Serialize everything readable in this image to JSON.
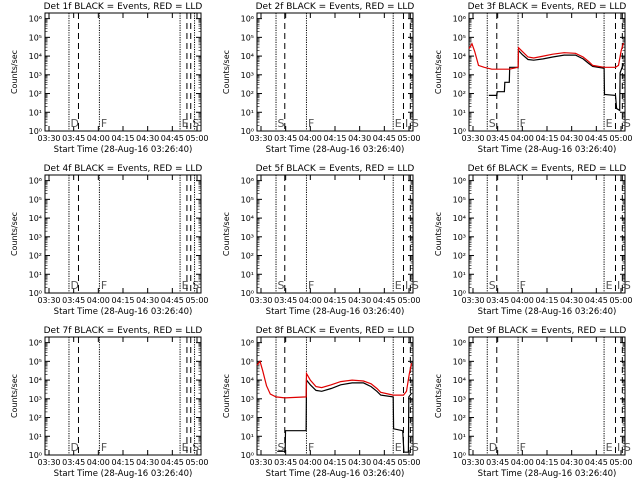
{
  "colors": {
    "events": "#000000",
    "lld": "#e00000",
    "axis": "#000000",
    "background": "#ffffff"
  },
  "chart_data": [
    {
      "type": "line",
      "title": "Det 1f BLACK = Events, RED = LLD",
      "xlabel": "Start Time (28-Aug-16 03:26:40)",
      "ylabel": "Counts/sec",
      "xticks": [
        "03:30",
        "03:45",
        "04:00",
        "04:15",
        "04:30",
        "04:45",
        "05:00"
      ],
      "yticks": [
        "10⁰",
        "10¹",
        "10²",
        "10³",
        "10⁴",
        "10⁵",
        "10⁶"
      ],
      "ylog": true,
      "xlim_min": [
        0,
        41
      ],
      "ylim_log10": [
        0,
        6.3
      ],
      "vlines": [
        {
          "t": 6.3,
          "style": "dotted",
          "label": "D"
        },
        {
          "t": 8.8,
          "style": "dashed",
          "label": ""
        },
        {
          "t": 14.3,
          "style": "dotted",
          "label": "F"
        },
        {
          "t": 35.5,
          "style": "dotted",
          "label": "E"
        },
        {
          "t": 37.3,
          "style": "dashed",
          "label": ""
        },
        {
          "t": 38.3,
          "style": "dashed",
          "label": "S"
        },
        {
          "t": 39.3,
          "style": "dotted",
          "label": ""
        }
      ],
      "series": []
    },
    {
      "type": "line",
      "title": "Det 2f BLACK = Events, RED = LLD",
      "xlabel": "Start Time (28-Aug-16 03:26:40)",
      "ylabel": "Counts/sec",
      "xticks": [
        "03:30",
        "03:45",
        "04:00",
        "04:15",
        "04:30",
        "04:45",
        "05:00"
      ],
      "yticks": [
        "10⁰",
        "10¹",
        "10²",
        "10³",
        "10⁴",
        "10⁵",
        "10⁶"
      ],
      "ylog": true,
      "xlim_min": [
        0,
        41
      ],
      "ylim_log10": [
        0,
        6.3
      ],
      "vlines": [
        {
          "t": 5.0,
          "style": "dotted",
          "label": "S"
        },
        {
          "t": 7.3,
          "style": "dashed",
          "label": ""
        },
        {
          "t": 13.0,
          "style": "dotted",
          "label": "F"
        },
        {
          "t": 35.8,
          "style": "dotted",
          "label": "E"
        },
        {
          "t": 38.5,
          "style": "dashed",
          "label": "I"
        },
        {
          "t": 40.3,
          "style": "dashed",
          "label": "S"
        }
      ],
      "series": []
    },
    {
      "type": "line",
      "title": "Det 3f BLACK = Events, RED = LLD",
      "xlabel": "Start Time (28-Aug-16 03:26:40)",
      "ylabel": "Counts/sec",
      "xticks": [
        "03:30",
        "03:45",
        "04:00",
        "04:15",
        "04:30",
        "04:45",
        "05:00"
      ],
      "yticks": [
        "10⁰",
        "10¹",
        "10²",
        "10³",
        "10⁴",
        "10⁵",
        "10⁶"
      ],
      "ylog": true,
      "xlim_min": [
        0,
        41
      ],
      "ylim_log10": [
        0,
        6.3
      ],
      "vlines": [
        {
          "t": 4.8,
          "style": "dotted",
          "label": "S"
        },
        {
          "t": 7.3,
          "style": "dashed",
          "label": ""
        },
        {
          "t": 12.9,
          "style": "dotted",
          "label": "F"
        },
        {
          "t": 35.5,
          "style": "dotted",
          "label": "E"
        },
        {
          "t": 38.5,
          "style": "dashed",
          "label": ""
        },
        {
          "t": 40.3,
          "style": "dashed",
          "label": "S"
        }
      ],
      "series": [
        {
          "name": "Events",
          "color": "#000000",
          "points": [
            [
              5.2,
              1.9
            ],
            [
              7.3,
              1.9
            ],
            [
              7.4,
              2.1
            ],
            [
              9.3,
              2.1
            ],
            [
              9.4,
              2.6
            ],
            [
              10.6,
              2.6
            ],
            [
              10.7,
              3.4
            ],
            [
              12.9,
              3.4
            ],
            [
              13.0,
              4.3
            ],
            [
              14.0,
              4.08
            ],
            [
              15.5,
              3.82
            ],
            [
              17.0,
              3.78
            ],
            [
              19.5,
              3.85
            ],
            [
              22.0,
              3.95
            ],
            [
              25.0,
              4.05
            ],
            [
              28.0,
              4.05
            ],
            [
              30.0,
              3.85
            ],
            [
              31.5,
              3.6
            ],
            [
              32.5,
              3.45
            ],
            [
              35.5,
              3.35
            ],
            [
              35.6,
              1.95
            ],
            [
              38.5,
              1.9
            ],
            [
              38.8,
              1.2
            ],
            [
              39.6,
              1.1
            ],
            [
              39.7,
              3.1
            ],
            [
              40.6,
              3.6
            ]
          ]
        },
        {
          "name": "LLD",
          "color": "#e00000",
          "points": [
            [
              0.0,
              4.4
            ],
            [
              0.8,
              4.65
            ],
            [
              1.5,
              4.25
            ],
            [
              2.5,
              3.5
            ],
            [
              4.0,
              3.4
            ],
            [
              6.0,
              3.3
            ],
            [
              9.0,
              3.3
            ],
            [
              10.6,
              3.3
            ],
            [
              12.9,
              3.4
            ],
            [
              13.0,
              4.45
            ],
            [
              14.0,
              4.25
            ],
            [
              15.5,
              3.95
            ],
            [
              17.0,
              3.9
            ],
            [
              19.5,
              4.0
            ],
            [
              22.0,
              4.1
            ],
            [
              25.0,
              4.18
            ],
            [
              28.0,
              4.15
            ],
            [
              30.0,
              3.95
            ],
            [
              31.5,
              3.7
            ],
            [
              32.5,
              3.5
            ],
            [
              35.5,
              3.4
            ],
            [
              38.5,
              3.4
            ],
            [
              39.3,
              3.5
            ],
            [
              40.0,
              4.3
            ],
            [
              40.6,
              4.7
            ]
          ]
        }
      ]
    },
    {
      "type": "line",
      "title": "Det 4f BLACK = Events, RED = LLD",
      "xlabel": "Start Time (28-Aug-16 03:26:40)",
      "ylabel": "Counts/sec",
      "xticks": [
        "03:30",
        "03:45",
        "04:00",
        "04:15",
        "04:30",
        "04:45",
        "05:00"
      ],
      "yticks": [
        "10⁰",
        "10¹",
        "10²",
        "10³",
        "10⁴",
        "10⁵",
        "10⁶"
      ],
      "ylog": true,
      "xlim_min": [
        0,
        41
      ],
      "ylim_log10": [
        0,
        6.3
      ],
      "vlines": [
        {
          "t": 6.3,
          "style": "dotted",
          "label": "D"
        },
        {
          "t": 8.8,
          "style": "dashed",
          "label": ""
        },
        {
          "t": 14.3,
          "style": "dotted",
          "label": "F"
        },
        {
          "t": 35.5,
          "style": "dotted",
          "label": "E"
        },
        {
          "t": 37.3,
          "style": "dashed",
          "label": ""
        },
        {
          "t": 38.3,
          "style": "dashed",
          "label": "S"
        },
        {
          "t": 39.3,
          "style": "dotted",
          "label": ""
        }
      ],
      "series": []
    },
    {
      "type": "line",
      "title": "Det 5f BLACK = Events, RED = LLD",
      "xlabel": "Start Time (28-Aug-16 03:26:40)",
      "ylabel": "Counts/sec",
      "xticks": [
        "03:30",
        "03:45",
        "04:00",
        "04:15",
        "04:30",
        "04:45",
        "05:00"
      ],
      "yticks": [
        "10⁰",
        "10¹",
        "10²",
        "10³",
        "10⁴",
        "10⁵",
        "10⁶"
      ],
      "ylog": true,
      "xlim_min": [
        0,
        41
      ],
      "ylim_log10": [
        0,
        6.3
      ],
      "vlines": [
        {
          "t": 5.0,
          "style": "dotted",
          "label": "S"
        },
        {
          "t": 7.3,
          "style": "dashed",
          "label": ""
        },
        {
          "t": 13.0,
          "style": "dotted",
          "label": "F"
        },
        {
          "t": 35.8,
          "style": "dotted",
          "label": "E"
        },
        {
          "t": 38.5,
          "style": "dashed",
          "label": "I"
        },
        {
          "t": 40.3,
          "style": "dashed",
          "label": "S"
        }
      ],
      "series": []
    },
    {
      "type": "line",
      "title": "Det 6f BLACK = Events, RED = LLD",
      "xlabel": "Start Time (28-Aug-16 03:26:40)",
      "ylabel": "Counts/sec",
      "xticks": [
        "03:30",
        "03:45",
        "04:00",
        "04:15",
        "04:30",
        "04:45",
        "05:00"
      ],
      "yticks": [
        "10⁰",
        "10¹",
        "10²",
        "10³",
        "10⁴",
        "10⁵",
        "10⁶"
      ],
      "ylog": true,
      "xlim_min": [
        0,
        41
      ],
      "ylim_log10": [
        0,
        6.3
      ],
      "vlines": [
        {
          "t": 4.8,
          "style": "dotted",
          "label": "S"
        },
        {
          "t": 7.3,
          "style": "dashed",
          "label": ""
        },
        {
          "t": 12.9,
          "style": "dotted",
          "label": "F"
        },
        {
          "t": 35.5,
          "style": "dotted",
          "label": "E"
        },
        {
          "t": 38.5,
          "style": "dashed",
          "label": "I"
        },
        {
          "t": 40.3,
          "style": "dashed",
          "label": "S"
        }
      ],
      "series": []
    },
    {
      "type": "line",
      "title": "Det 7f BLACK = Events, RED = LLD",
      "xlabel": "Start Time (28-Aug-16 03:26:40)",
      "ylabel": "Counts/sec",
      "xticks": [
        "03:30",
        "03:45",
        "04:00",
        "04:15",
        "04:30",
        "04:45",
        "05:00"
      ],
      "yticks": [
        "10⁰",
        "10¹",
        "10²",
        "10³",
        "10⁴",
        "10⁵",
        "10⁶"
      ],
      "ylog": true,
      "xlim_min": [
        0,
        41
      ],
      "ylim_log10": [
        0,
        6.3
      ],
      "vlines": [
        {
          "t": 6.3,
          "style": "dotted",
          "label": "D"
        },
        {
          "t": 8.8,
          "style": "dashed",
          "label": ""
        },
        {
          "t": 14.3,
          "style": "dotted",
          "label": "F"
        },
        {
          "t": 35.5,
          "style": "dotted",
          "label": "E"
        },
        {
          "t": 37.3,
          "style": "dashed",
          "label": ""
        },
        {
          "t": 38.3,
          "style": "dashed",
          "label": "S"
        },
        {
          "t": 39.3,
          "style": "dotted",
          "label": ""
        }
      ],
      "series": []
    },
    {
      "type": "line",
      "title": "Det 8f BLACK = Events, RED = LLD",
      "xlabel": "Start Time (28-Aug-16 03:26:40)",
      "ylabel": "Counts/sec",
      "xticks": [
        "03:30",
        "03:45",
        "04:00",
        "04:15",
        "04:30",
        "04:45",
        "05:00"
      ],
      "yticks": [
        "10⁰",
        "10¹",
        "10²",
        "10³",
        "10⁴",
        "10⁵",
        "10⁶"
      ],
      "ylog": true,
      "xlim_min": [
        0,
        41
      ],
      "ylim_log10": [
        0,
        6.3
      ],
      "vlines": [
        {
          "t": 5.0,
          "style": "dotted",
          "label": "S"
        },
        {
          "t": 7.3,
          "style": "dashed",
          "label": ""
        },
        {
          "t": 13.0,
          "style": "dotted",
          "label": "F"
        },
        {
          "t": 35.8,
          "style": "dotted",
          "label": "E"
        },
        {
          "t": 38.5,
          "style": "dashed",
          "label": ""
        },
        {
          "t": 40.3,
          "style": "dashed",
          "label": "S"
        }
      ],
      "series": [
        {
          "name": "Events",
          "color": "#000000",
          "points": [
            [
              5.3,
              0.2
            ],
            [
              7.4,
              0.2
            ],
            [
              7.5,
              1.3
            ],
            [
              12.9,
              1.3
            ],
            [
              13.0,
              4.0
            ],
            [
              14.0,
              3.75
            ],
            [
              15.5,
              3.45
            ],
            [
              17.0,
              3.4
            ],
            [
              19.5,
              3.55
            ],
            [
              22.0,
              3.75
            ],
            [
              25.0,
              3.85
            ],
            [
              28.0,
              3.85
            ],
            [
              30.0,
              3.65
            ],
            [
              31.5,
              3.4
            ],
            [
              32.5,
              3.2
            ],
            [
              35.8,
              3.1
            ],
            [
              35.9,
              1.4
            ],
            [
              38.3,
              1.3
            ],
            [
              38.6,
              0.15
            ],
            [
              39.8,
              0.15
            ],
            [
              39.9,
              3.1
            ],
            [
              40.6,
              3.3
            ]
          ]
        },
        {
          "name": "LLD",
          "color": "#e00000",
          "points": [
            [
              0.0,
              4.8
            ],
            [
              0.8,
              5.0
            ],
            [
              1.5,
              4.5
            ],
            [
              2.5,
              3.7
            ],
            [
              3.5,
              3.25
            ],
            [
              5.0,
              3.1
            ],
            [
              7.3,
              3.05
            ],
            [
              12.9,
              3.1
            ],
            [
              13.0,
              4.35
            ],
            [
              14.0,
              4.0
            ],
            [
              15.5,
              3.65
            ],
            [
              17.0,
              3.6
            ],
            [
              19.5,
              3.75
            ],
            [
              22.0,
              3.92
            ],
            [
              25.0,
              4.0
            ],
            [
              28.0,
              3.95
            ],
            [
              30.0,
              3.8
            ],
            [
              31.5,
              3.55
            ],
            [
              32.5,
              3.35
            ],
            [
              35.8,
              3.2
            ],
            [
              38.5,
              3.2
            ],
            [
              39.3,
              3.4
            ],
            [
              40.0,
              4.3
            ],
            [
              40.6,
              4.9
            ]
          ]
        }
      ]
    },
    {
      "type": "line",
      "title": "Det 9f BLACK = Events, RED = LLD",
      "xlabel": "Start Time (28-Aug-16 03:26:40)",
      "ylabel": "Counts/sec",
      "xticks": [
        "03:30",
        "03:45",
        "04:00",
        "04:15",
        "04:30",
        "04:45",
        "05:00"
      ],
      "yticks": [
        "10⁰",
        "10¹",
        "10²",
        "10³",
        "10⁴",
        "10⁵",
        "10⁶"
      ],
      "ylog": true,
      "xlim_min": [
        0,
        41
      ],
      "ylim_log10": [
        0,
        6.3
      ],
      "vlines": [
        {
          "t": 4.8,
          "style": "dotted",
          "label": "D"
        },
        {
          "t": 7.3,
          "style": "dashed",
          "label": ""
        },
        {
          "t": 12.9,
          "style": "dotted",
          "label": "F"
        },
        {
          "t": 35.5,
          "style": "dotted",
          "label": "E"
        },
        {
          "t": 38.5,
          "style": "dashed",
          "label": "I"
        },
        {
          "t": 40.3,
          "style": "dashed",
          "label": "S"
        }
      ],
      "series": []
    }
  ]
}
